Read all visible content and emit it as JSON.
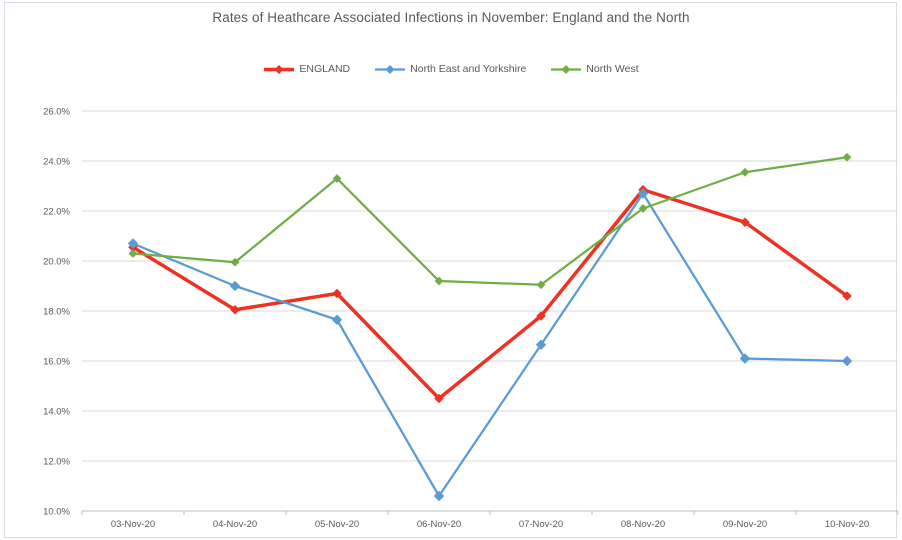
{
  "chart_data": {
    "type": "line",
    "title": "Rates of Heathcare Associated Infections in November: England and the North",
    "categories": [
      "03-Nov-20",
      "04-Nov-20",
      "05-Nov-20",
      "06-Nov-20",
      "07-Nov-20",
      "08-Nov-20",
      "09-Nov-20",
      "10-Nov-20"
    ],
    "series": [
      {
        "name": "ENGLAND",
        "color": "#ED3224",
        "line_width": 3.5,
        "marker": "diamond",
        "marker_size": 4.8,
        "values": [
          20.55,
          18.05,
          18.7,
          14.5,
          17.8,
          22.85,
          21.55,
          18.6
        ]
      },
      {
        "name": "North East and Yorkshire",
        "color": "#5B9BD5",
        "line_width": 2.25,
        "marker": "diamond",
        "marker_size": 5.2,
        "values": [
          20.7,
          19.0,
          17.65,
          10.6,
          16.65,
          22.7,
          16.1,
          16.0
        ]
      },
      {
        "name": "North West",
        "color": "#70AD47",
        "line_width": 2.25,
        "marker": "diamond",
        "marker_size": 4.4,
        "values": [
          20.3,
          19.95,
          23.3,
          19.2,
          19.05,
          22.1,
          23.55,
          24.15
        ]
      }
    ],
    "ylim": [
      10,
      26
    ],
    "y_ticks": [
      10,
      12,
      14,
      16,
      18,
      20,
      22,
      24,
      26
    ],
    "y_tick_labels": [
      "10.0%",
      "12.0%",
      "14.0%",
      "16.0%",
      "18.0%",
      "20.0%",
      "22.0%",
      "24.0%",
      "26.0%"
    ],
    "xlabel": "",
    "ylabel": "",
    "grid": "horizontal",
    "legend_position": "top"
  },
  "styles": {
    "background": "#FFFFFF",
    "text_color": "#595959",
    "gridline_color": "#D9D9D9",
    "axis_color": "#BFBFBF",
    "border_color": "#D7DDE4"
  }
}
